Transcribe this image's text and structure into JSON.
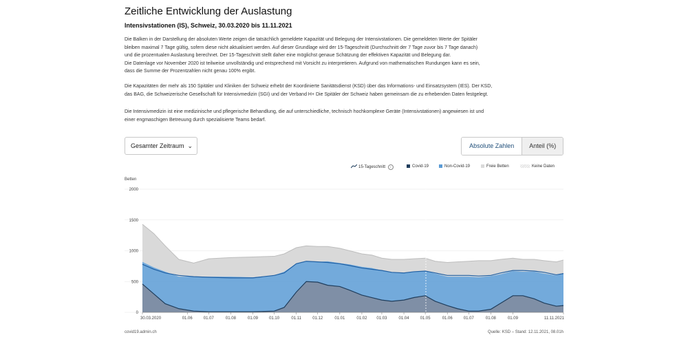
{
  "header": {
    "title": "Zeitliche Entwicklung der Auslastung",
    "subtitle": "Intensivstationen (IS), Schweiz, 30.03.2020 bis 11.11.2021"
  },
  "description": {
    "p1": [
      "Die Balken in der Darstellung der absoluten Werte zeigen die tatsächlich gemeldete Kapazität und Belegung der Intensivstationen. Die gemeldeten Werte der Spitäler",
      "bleiben maximal 7 Tage gültig, sofern diese nicht aktualisiert werden. Auf dieser Grundlage wird der 15-Tageschnitt (Durchschnitt der 7 Tage zuvor bis 7 Tage danach)",
      "und die prozentualen Auslastung berechnet. Der 15-Tageschnitt stellt daher eine möglichst genaue Schätzung der effektiven Kapazität und Belegung dar.",
      "Die Datenlage vor November 2020 ist teilweise unvollständig und entsprechend mit Vorsicht zu interpretieren. Aufgrund von mathematischen Rundungen kann es sein,",
      "dass die Summe der Prozentzahlen nicht genau 100% ergibt."
    ],
    "p2": [
      "Die Kapazitäten der mehr als 150 Spitäler und Kliniken der Schweiz erhebt der Koordinierte Sanitätsdienst (KSD) über das Informations- und Einsatzsystem (IES). Der KSD,",
      "das BAG, die Schweizerische Gesellschaft für Intensivmedizin (SGI) und der Verband H+ Die Spitäler der Schweiz haben gemeinsam die zu erhebenden Daten festgelegt."
    ],
    "p3": [
      "Die Intensivmedizin ist eine medizinische und pflegerische Behandlung, die auf unterschiedliche, technisch hochkomplexe Geräte (Intensivstationen) angewiesen ist und",
      "einer engmaschigen Betreuung durch spezialisierte Teams bedarf."
    ]
  },
  "controls": {
    "period_select": "Gesamter Zeitraum",
    "toggle_absolute": "Absolute Zahlen",
    "toggle_percent": "Anteil (%)"
  },
  "legend": {
    "avg": "15-Tageschnitt",
    "covid": "Covid-19",
    "noncovid": "Non-Covid-19",
    "free": "Freie Betten",
    "nodata": "Keine Daten"
  },
  "colors": {
    "covid": "#1f3d5c",
    "noncovid": "#5b9bd5",
    "free": "#d9d9d9",
    "nodata": "#eeeeee"
  },
  "chart_data": {
    "type": "area",
    "title": "",
    "ylabel": "Betten",
    "ylim": [
      0,
      2000
    ],
    "yticks": [
      0,
      500,
      1000,
      1500,
      2000
    ],
    "x_tick_labels": [
      "30.03.2020",
      "01.06",
      "01.07",
      "01.08",
      "01.09",
      "01.10",
      "01.11",
      "01.12",
      "01.01",
      "01.02",
      "01.03",
      "01.04",
      "01.05",
      "01.06",
      "01.07",
      "01.08",
      "01.09",
      "11.11.2021"
    ],
    "x": [
      "2020-03-30",
      "2020-04-15",
      "2020-05-01",
      "2020-05-20",
      "2020-06-10",
      "2020-07-01",
      "2020-08-01",
      "2020-09-01",
      "2020-10-01",
      "2020-10-15",
      "2020-11-01",
      "2020-11-15",
      "2020-12-01",
      "2020-12-15",
      "2021-01-01",
      "2021-01-15",
      "2021-02-01",
      "2021-02-15",
      "2021-03-01",
      "2021-03-15",
      "2021-04-01",
      "2021-04-15",
      "2021-05-01",
      "2021-05-15",
      "2021-06-01",
      "2021-06-15",
      "2021-07-01",
      "2021-07-15",
      "2021-08-01",
      "2021-08-15",
      "2021-09-01",
      "2021-09-15",
      "2021-10-01",
      "2021-10-15",
      "2021-11-01",
      "2021-11-11"
    ],
    "series": [
      {
        "name": "Covid-19",
        "values": [
          460,
          300,
          140,
          60,
          20,
          10,
          10,
          10,
          20,
          80,
          330,
          500,
          490,
          440,
          420,
          360,
          280,
          240,
          200,
          180,
          200,
          240,
          270,
          180,
          110,
          60,
          20,
          20,
          50,
          150,
          270,
          270,
          220,
          150,
          100,
          110
        ]
      },
      {
        "name": "Non-Covid-19",
        "values": [
          360,
          430,
          520,
          520,
          560,
          570,
          570,
          560,
          580,
          580,
          460,
          330,
          330,
          390,
          380,
          420,
          460,
          480,
          480,
          470,
          440,
          420,
          400,
          450,
          470,
          520,
          560,
          550,
          540,
          470,
          400,
          390,
          440,
          480,
          500,
          520
        ]
      },
      {
        "name": "Freie Betten",
        "values": [
          610,
          550,
          420,
          280,
          220,
          290,
          310,
          330,
          310,
          290,
          260,
          250,
          250,
          240,
          240,
          220,
          210,
          210,
          200,
          210,
          220,
          210,
          210,
          200,
          230,
          240,
          250,
          270,
          250,
          240,
          210,
          200,
          200,
          210,
          220,
          220
        ]
      },
      {
        "name": "15-Tageschnitt",
        "values": [
          780,
          700,
          640,
          600,
          580,
          570,
          560,
          560,
          600,
          640,
          790,
          830,
          820,
          810,
          790,
          760,
          720,
          700,
          680,
          650,
          640,
          660,
          670,
          640,
          600,
          600,
          600,
          590,
          600,
          640,
          680,
          680,
          670,
          650,
          610,
          630
        ]
      }
    ],
    "grid": true,
    "legend_position": "top-right",
    "annotations": [
      "30.03.2020",
      "11.11.2021"
    ]
  },
  "footer": {
    "left": "covid19.admin.ch",
    "right": "Quelle: KSD – Stand: 12.11.2021, 08.01h"
  }
}
